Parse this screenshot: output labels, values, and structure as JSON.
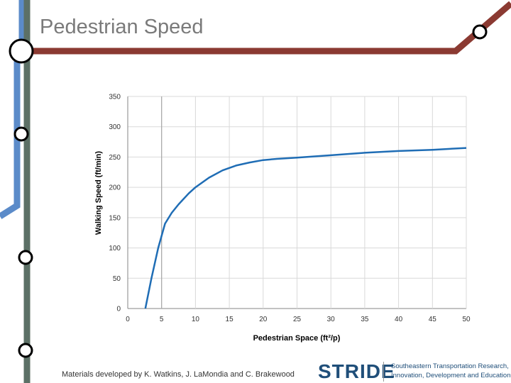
{
  "slide": {
    "title": "Pedestrian Speed",
    "footer": "Materials developed by K. Watkins, J. LaMondia and C. Brakewood",
    "logo": {
      "wordmark": "STRIDE",
      "line1": "Southeastern Transportation Research,",
      "line2": "Innovation, Development and Education Center"
    }
  },
  "colors": {
    "metro_blue": "#5b8bc9",
    "metro_gray": "#5c7066",
    "metro_red": "#8b3a32",
    "line": "#1f6db5",
    "grid": "#d9d9d9"
  },
  "chart_data": {
    "type": "line",
    "xlabel": "Pedestrian Space (ft²/p)",
    "ylabel": "Walking Speed (ft/min)",
    "xlim": [
      0,
      50
    ],
    "ylim": [
      0,
      350
    ],
    "xticks": [
      0,
      5,
      10,
      15,
      20,
      25,
      30,
      35,
      40,
      45,
      50
    ],
    "yticks": [
      0,
      50,
      100,
      150,
      200,
      250,
      300,
      350
    ],
    "grid": true,
    "series": [
      {
        "x": [
          2.6,
          3.5,
          4.5,
          5.5,
          6.5,
          7.5,
          9,
          10,
          12,
          14,
          16,
          18,
          20,
          22,
          25,
          30,
          35,
          40,
          45,
          50
        ],
        "y": [
          0,
          50,
          100,
          140,
          158,
          172,
          190,
          200,
          216,
          228,
          236,
          241,
          245,
          247,
          249,
          253,
          257,
          260,
          262,
          265
        ]
      }
    ]
  }
}
